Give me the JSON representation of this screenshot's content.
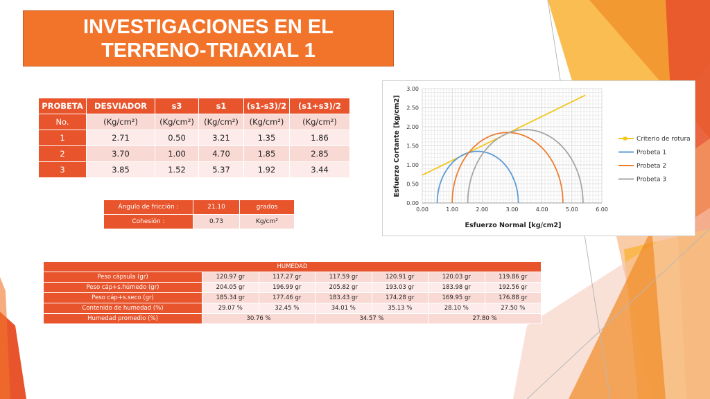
{
  "title": {
    "line1": "INVESTIGACIONES EN EL",
    "line2": "TERRENO-TRIAXIAL 1"
  },
  "triaxial_table": {
    "headers": [
      "PROBETA",
      "DESVIADOR",
      "s3",
      "s1",
      "(s1-s3)/2",
      "(s1+s3)/2"
    ],
    "units": [
      "No.",
      "(Kg/cm²)",
      "(Kg/cm²)",
      "(Kg/cm²)",
      "(Kg/cm²)",
      "(Kg/cm²)"
    ],
    "rows": [
      [
        "1",
        "2.71",
        "0.50",
        "3.21",
        "1.35",
        "1.86"
      ],
      [
        "2",
        "3.70",
        "1.00",
        "4.70",
        "1.85",
        "2.85"
      ],
      [
        "3",
        "3.85",
        "1.52",
        "5.37",
        "1.92",
        "3.44"
      ]
    ]
  },
  "strength_params": {
    "friction_label": "Ángulo de fricción :",
    "friction_value": "21.10",
    "friction_unit": "grados",
    "cohesion_label": "Cohesión :",
    "cohesion_value": "0.73",
    "cohesion_unit": "Kg/cm²"
  },
  "chart_data": {
    "type": "line",
    "xlabel": "Esfuerzo Normal [kg/cm2]",
    "ylabel": "Esfuerzo Cortante [kg/cm2]",
    "xlim": [
      0,
      6
    ],
    "ylim": [
      0,
      3
    ],
    "x_ticks": [
      "0.00",
      "1.00",
      "2.00",
      "3.00",
      "4.00",
      "5.00",
      "6.00"
    ],
    "y_ticks": [
      "0.00",
      "0.50",
      "1.00",
      "1.50",
      "2.00",
      "2.50",
      "3.00"
    ],
    "grid": true,
    "legend_position": "right",
    "series": [
      {
        "name": "Criterio de rotura",
        "color": "#f5c518",
        "kind": "line",
        "x": [
          0,
          5.45
        ],
        "y": [
          0.73,
          2.83
        ]
      },
      {
        "name": "Probeta 1",
        "color": "#5b9bd5",
        "kind": "circle",
        "s3": 0.5,
        "s1": 3.21
      },
      {
        "name": "Probeta 2",
        "color": "#ed7d31",
        "kind": "circle",
        "s3": 1.0,
        "s1": 4.7
      },
      {
        "name": "Probeta 3",
        "color": "#a5a5a5",
        "kind": "circle",
        "s3": 1.52,
        "s1": 5.37
      }
    ]
  },
  "humedad": {
    "title": "HUMEDAD",
    "rows": [
      {
        "label": "Peso cápsula (gr)",
        "values": [
          "120.97 gr",
          "117.27 gr",
          "117.59 gr",
          "120.91 gr",
          "120.03 gr",
          "119.86 gr"
        ]
      },
      {
        "label": "Peso cáp+s.húmedo (gr)",
        "values": [
          "204.05 gr",
          "196.99 gr",
          "205.82 gr",
          "193.03 gr",
          "183.98 gr",
          "192.56 gr"
        ]
      },
      {
        "label": "Peso cáp+s.seco (gr)",
        "values": [
          "185.34 gr",
          "177.46 gr",
          "183.43 gr",
          "174.28 gr",
          "169.95 gr",
          "176.88 gr"
        ]
      },
      {
        "label": "Contenido de humedad (%)",
        "values": [
          "29.07 %",
          "32.45 %",
          "34.01 %",
          "35.13 %",
          "28.10 %",
          "27.50 %"
        ]
      }
    ],
    "avg_label": "Humedad promedio (%)",
    "avg_values": [
      "30.76 %",
      "34.57 %",
      "27.80 %"
    ]
  }
}
